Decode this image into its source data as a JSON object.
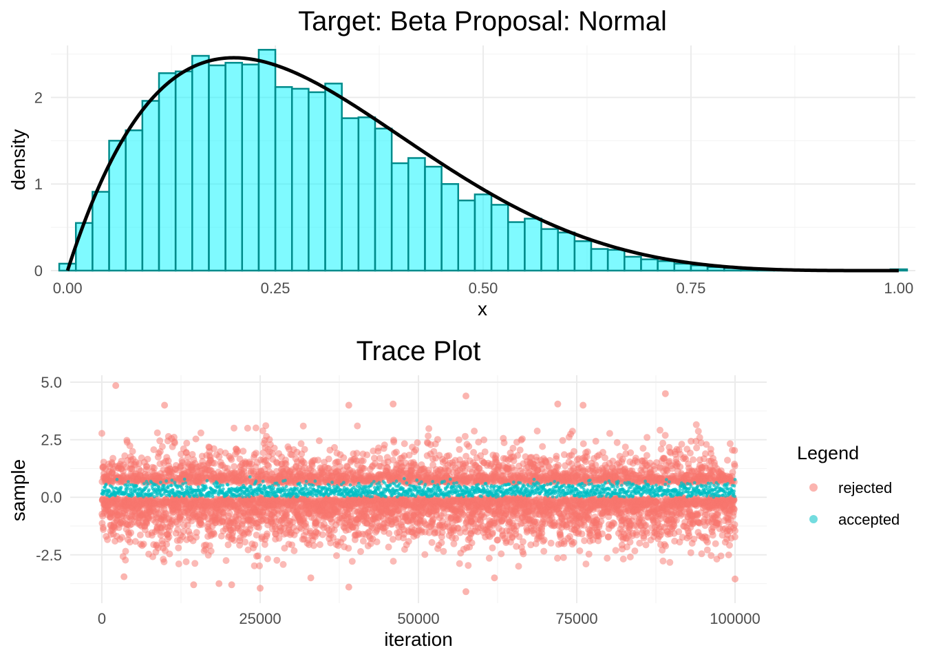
{
  "chart_data": [
    {
      "type": "bar",
      "title": "Target:  Beta  Proposal:  Normal",
      "xlabel": "x",
      "ylabel": "density",
      "xlim": [
        -0.02,
        1.02
      ],
      "ylim": [
        0,
        2.6
      ],
      "x_ticks": [
        "0.00",
        "0.25",
        "0.50",
        "0.75",
        "1.00"
      ],
      "y_ticks": [
        "0",
        "1",
        "2"
      ],
      "grid": true,
      "histogram_bin_width": 0.02,
      "histogram_bin_left_edges": [
        -0.01,
        0.01,
        0.03,
        0.05,
        0.07,
        0.09,
        0.11,
        0.13,
        0.15,
        0.17,
        0.19,
        0.21,
        0.23,
        0.25,
        0.27,
        0.29,
        0.31,
        0.33,
        0.35,
        0.37,
        0.39,
        0.41,
        0.43,
        0.45,
        0.47,
        0.49,
        0.51,
        0.53,
        0.55,
        0.57,
        0.59,
        0.61,
        0.63,
        0.65,
        0.67,
        0.69,
        0.71,
        0.73,
        0.75,
        0.77,
        0.79,
        0.81,
        0.83,
        0.85,
        0.87,
        0.89,
        0.91,
        0.93,
        0.95,
        0.97,
        0.99
      ],
      "histogram_density": [
        0.08,
        0.55,
        0.91,
        1.5,
        1.62,
        1.96,
        2.28,
        2.3,
        2.48,
        2.37,
        2.4,
        2.38,
        2.55,
        2.12,
        2.1,
        2.06,
        2.16,
        1.76,
        1.77,
        1.64,
        1.24,
        1.3,
        1.2,
        1.0,
        0.81,
        0.88,
        0.76,
        0.56,
        0.6,
        0.48,
        0.44,
        0.34,
        0.25,
        0.24,
        0.16,
        0.13,
        0.11,
        0.08,
        0.06,
        0.04,
        0.03,
        0.02,
        0.015,
        0.01,
        0.008,
        0.006,
        0.004,
        0.003,
        0.002,
        0.002,
        0.015
      ],
      "histogram_fill": "#00F5FF",
      "histogram_outline": "#008B8B",
      "density_curve": {
        "distribution": "beta",
        "alpha": 2,
        "beta": 5,
        "color": "#000000"
      }
    },
    {
      "type": "scatter",
      "title": "Trace Plot",
      "xlabel": "iteration",
      "ylabel": "sample",
      "xlim": [
        -5000,
        105000
      ],
      "ylim": [
        -4.6,
        5.3
      ],
      "x_ticks": [
        "0",
        "25000",
        "50000",
        "75000",
        "100000"
      ],
      "y_ticks": [
        "-2.5",
        "0.0",
        "2.5",
        "5.0"
      ],
      "grid": true,
      "legend_position": "right",
      "legend_title": "Legend",
      "series": [
        {
          "name": "rejected",
          "color": "#F8766D",
          "n_points": 100000,
          "distribution": "normal",
          "mean": 0.0,
          "sd": 1.0,
          "excluded_range": [
            0.0,
            0.6
          ],
          "outliers": [
            [
              2200,
              4.85
            ],
            [
              89000,
              4.5
            ],
            [
              57500,
              4.4
            ],
            [
              46000,
              4.05
            ],
            [
              72000,
              4.05
            ],
            [
              76000,
              4.0
            ],
            [
              9900,
              4.0
            ],
            [
              39000,
              4.0
            ],
            [
              25000,
              -3.95
            ],
            [
              39000,
              -3.9
            ],
            [
              57500,
              -4.1
            ],
            [
              14500,
              -3.8
            ],
            [
              18500,
              -3.75
            ],
            [
              20500,
              -3.8
            ],
            [
              100000,
              -3.55
            ],
            [
              62000,
              -3.5
            ],
            [
              3500,
              -3.45
            ],
            [
              33000,
              -3.5
            ]
          ]
        },
        {
          "name": "accepted",
          "color": "#00BFC4",
          "n_points": 100000,
          "distribution": "beta",
          "alpha": 2,
          "beta": 5
        }
      ]
    }
  ]
}
